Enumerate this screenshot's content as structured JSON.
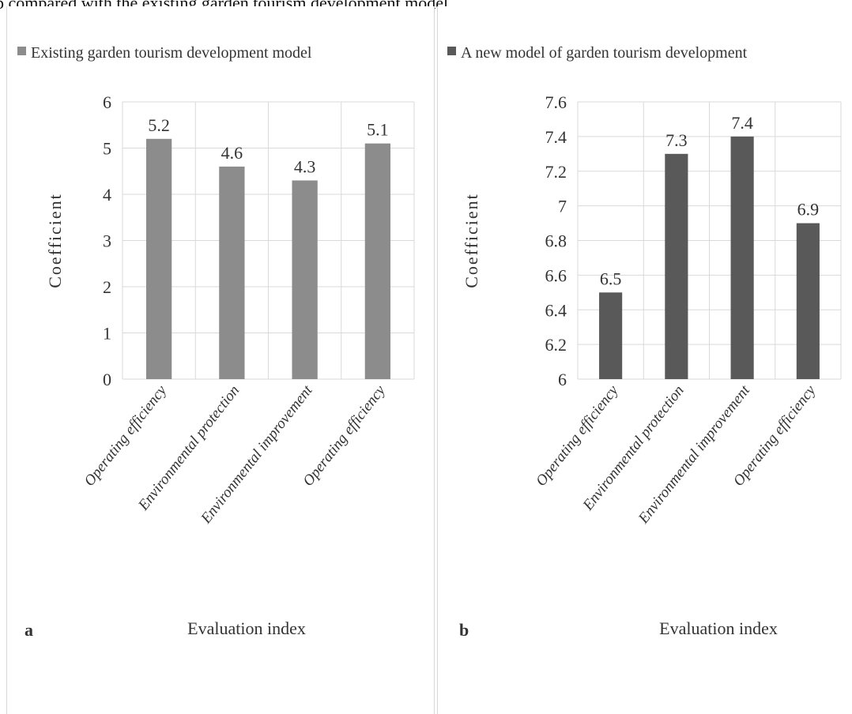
{
  "caption_fragment": "b compared with the existing garden tourism development model.",
  "chart_data": [
    {
      "type": "bar",
      "panel_label": "a",
      "legend": "Existing garden tourism development model",
      "legend_position": "top",
      "categories": [
        "Operating efficiency",
        "Environmental protection",
        "Environmental improvement",
        "Operating efficiency"
      ],
      "values": [
        5.2,
        4.6,
        4.3,
        5.1
      ],
      "data_labels": [
        "5.2",
        "4.6",
        "4.3",
        "5.1"
      ],
      "xlabel": "Evaluation index",
      "ylabel": "Coefficient",
      "ylim": [
        0,
        6
      ],
      "yticks": [
        "0",
        "1",
        "2",
        "3",
        "4",
        "5",
        "6"
      ],
      "ytick_values": [
        0,
        1,
        2,
        3,
        4,
        5,
        6
      ],
      "grid": true,
      "bar_color": "#8c8c8c"
    },
    {
      "type": "bar",
      "panel_label": "b",
      "legend": "A new model of garden tourism development",
      "legend_position": "top",
      "categories": [
        "Operating efficiency",
        "Environmental protection",
        "Environmental improvement",
        "Operating efficiency"
      ],
      "values": [
        6.5,
        7.3,
        7.4,
        6.9
      ],
      "data_labels": [
        "6.5",
        "7.3",
        "7.4",
        "6.9"
      ],
      "xlabel": "Evaluation index",
      "ylabel": "Coefficient",
      "ylim": [
        6,
        7.6
      ],
      "yticks": [
        "6",
        "6.2",
        "6.4",
        "6.6",
        "6.8",
        "7",
        "7.2",
        "7.4",
        "7.6"
      ],
      "ytick_values": [
        6,
        6.2,
        6.4,
        6.6,
        6.8,
        7.0,
        7.2,
        7.4,
        7.6
      ],
      "grid": true,
      "bar_color": "#595959"
    }
  ]
}
